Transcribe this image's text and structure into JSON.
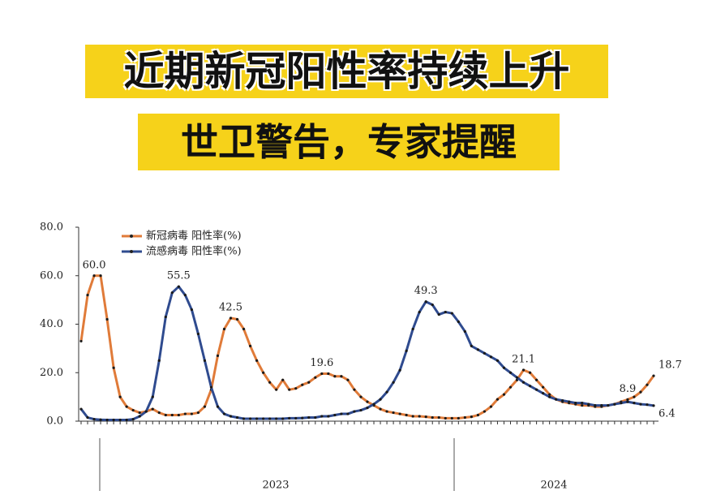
{
  "header": {
    "title": "近期新冠阳性率持续上升",
    "subtitle": "世卫警告，专家提醒"
  },
  "chart_data": {
    "type": "line",
    "ylim": [
      0,
      80
    ],
    "yticks": [
      {
        "value": 0,
        "label": "0.0"
      },
      {
        "value": 20,
        "label": "20.0"
      },
      {
        "value": 40,
        "label": "40.0"
      },
      {
        "value": 60,
        "label": "60.0"
      },
      {
        "value": 80,
        "label": "80.0"
      }
    ],
    "year_labels": [
      "2023",
      "2024"
    ],
    "series": [
      {
        "name": "新冠病毒 阳性率(%)",
        "color": "#e07b39",
        "values": [
          33,
          52,
          60,
          60,
          42,
          22,
          10,
          6,
          4.5,
          3.5,
          4,
          5,
          3.5,
          2.5,
          2.5,
          2.5,
          3,
          3,
          3.5,
          6,
          13,
          27,
          38,
          42.5,
          42,
          38,
          31,
          25,
          20,
          16,
          13,
          17,
          13,
          13.5,
          15,
          16,
          18,
          19.6,
          19.6,
          18.5,
          18.5,
          17,
          13,
          10,
          8,
          6.5,
          5,
          4,
          3.5,
          3,
          2.5,
          2,
          2,
          1.8,
          1.5,
          1.5,
          1.2,
          1.2,
          1.2,
          1.5,
          1.8,
          2.5,
          4,
          6,
          9,
          11,
          14,
          17,
          21.1,
          20,
          17,
          14,
          11,
          9,
          8,
          7.5,
          7,
          6.5,
          6.5,
          6,
          6,
          6.5,
          7,
          8,
          8.9,
          10,
          12,
          15,
          18.7
        ],
        "value_labels": [
          null,
          null,
          "60.0",
          null,
          null,
          null,
          null,
          null,
          null,
          null,
          null,
          null,
          null,
          null,
          null,
          null,
          null,
          null,
          null,
          null,
          null,
          null,
          null,
          "42.5",
          null,
          null,
          null,
          null,
          null,
          null,
          null,
          null,
          null,
          null,
          null,
          null,
          null,
          "19.6",
          null,
          null,
          null,
          null,
          null,
          null,
          null,
          null,
          null,
          null,
          null,
          null,
          null,
          null,
          null,
          null,
          null,
          null,
          null,
          null,
          null,
          null,
          null,
          null,
          null,
          null,
          null,
          null,
          null,
          null,
          "21.1",
          null,
          null,
          null,
          null,
          null,
          null,
          null,
          null,
          null,
          null,
          null,
          null,
          null,
          null,
          null,
          "8.9",
          null,
          null,
          null,
          "18.7"
        ]
      },
      {
        "name": "流感病毒 阳性率(%)",
        "color": "#2f4b8f",
        "values": [
          5,
          1.5,
          0.8,
          0.6,
          0.5,
          0.5,
          0.5,
          0.5,
          0.8,
          2,
          4,
          10,
          25,
          43,
          53,
          55.5,
          52,
          46,
          36,
          25,
          14,
          6,
          3,
          2,
          1.5,
          1,
          1,
          1,
          1,
          1,
          1,
          1,
          1.2,
          1.2,
          1.3,
          1.5,
          1.5,
          2,
          2,
          2.5,
          3,
          3,
          4,
          4.5,
          5.5,
          7,
          9,
          12,
          16,
          21,
          29,
          38,
          45,
          49.3,
          48,
          44,
          45,
          44.5,
          41,
          37,
          31,
          29.5,
          28,
          26.5,
          25,
          22,
          20,
          18,
          16,
          14.5,
          13,
          11.5,
          10,
          9,
          8.5,
          8,
          7.5,
          7.5,
          7,
          6.5,
          6.5,
          6.5,
          7,
          7.5,
          8,
          7.5,
          7,
          6.8,
          6.4
        ],
        "value_labels": [
          null,
          null,
          null,
          null,
          null,
          null,
          null,
          null,
          null,
          null,
          null,
          null,
          null,
          null,
          null,
          "55.5",
          null,
          null,
          null,
          null,
          null,
          null,
          null,
          null,
          null,
          null,
          null,
          null,
          null,
          null,
          null,
          null,
          null,
          null,
          null,
          null,
          null,
          null,
          null,
          null,
          null,
          null,
          null,
          null,
          null,
          null,
          null,
          null,
          null,
          null,
          null,
          null,
          null,
          "49.3",
          null,
          null,
          null,
          null,
          null,
          null,
          null,
          null,
          null,
          null,
          null,
          null,
          null,
          null,
          null,
          null,
          null,
          null,
          null,
          null,
          null,
          null,
          null,
          null,
          null,
          null,
          null,
          null,
          null,
          null,
          null,
          null,
          null,
          null,
          "6.4"
        ]
      }
    ]
  }
}
